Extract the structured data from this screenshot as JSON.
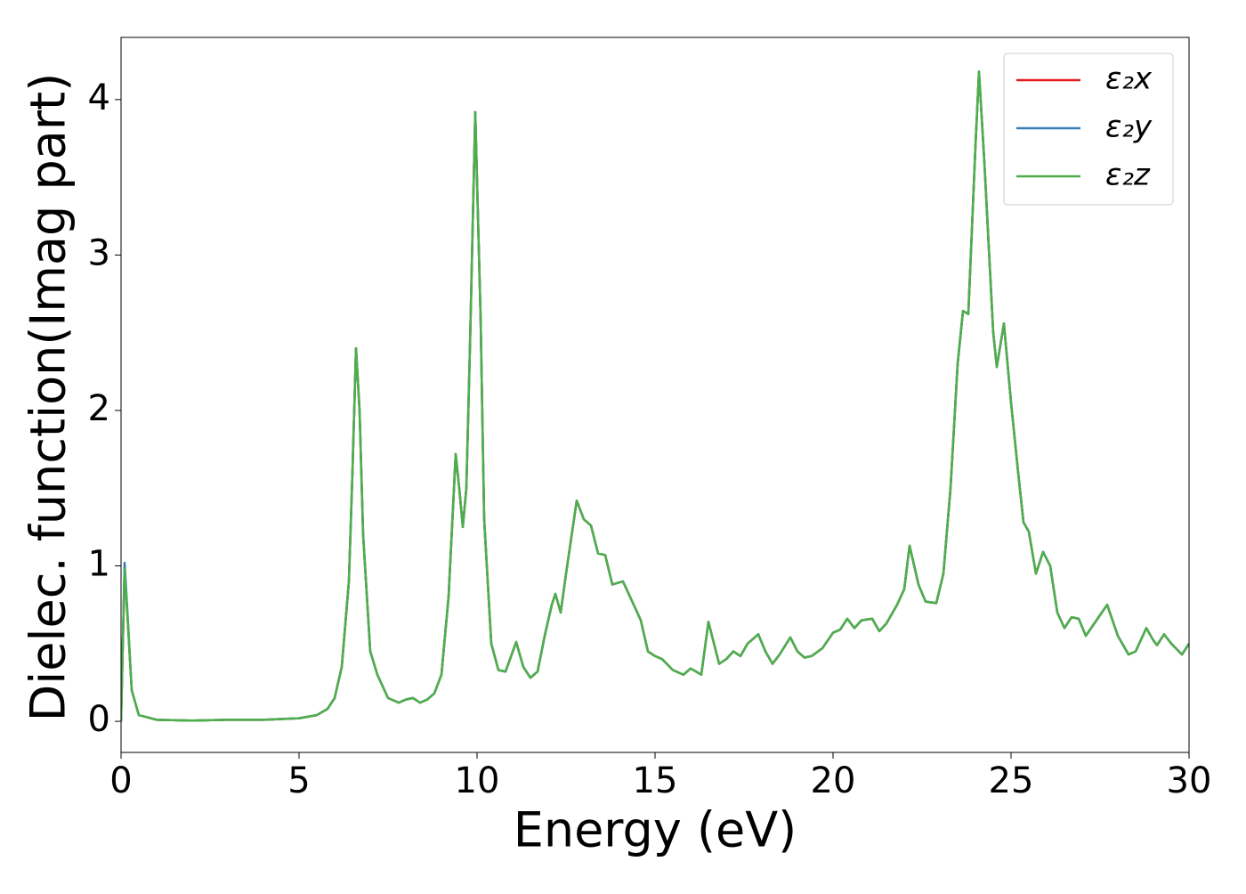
{
  "chart_data": {
    "type": "line",
    "xlabel": "Energy (eV)",
    "ylabel": "Dielec. function(Imag part)",
    "xlim": [
      0,
      30
    ],
    "xticks": [
      0,
      5,
      10,
      15,
      20,
      25,
      30
    ],
    "ylim": [
      -0.2,
      4.4
    ],
    "yticks": [
      0,
      1,
      2,
      3,
      4
    ],
    "legend": "upper right",
    "x": [
      0,
      0.1,
      0.2,
      0.3,
      0.5,
      1,
      2,
      3,
      4,
      5,
      5.5,
      5.8,
      6.0,
      6.2,
      6.4,
      6.5,
      6.6,
      6.7,
      6.8,
      7.0,
      7.2,
      7.5,
      7.8,
      8.0,
      8.2,
      8.4,
      8.6,
      8.8,
      9.0,
      9.2,
      9.4,
      9.5,
      9.6,
      9.7,
      9.8,
      9.95,
      10.1,
      10.2,
      10.4,
      10.6,
      10.8,
      11.1,
      11.3,
      11.5,
      11.7,
      11.9,
      12.1,
      12.2,
      12.35,
      12.5,
      12.8,
      13.0,
      13.2,
      13.4,
      13.6,
      13.8,
      14.1,
      14.4,
      14.6,
      14.8,
      15.0,
      15.2,
      15.5,
      15.8,
      16.0,
      16.3,
      16.5,
      16.8,
      17.0,
      17.2,
      17.4,
      17.6,
      17.9,
      18.1,
      18.3,
      18.5,
      18.8,
      19.0,
      19.2,
      19.4,
      19.7,
      20.0,
      20.2,
      20.4,
      20.6,
      20.8,
      21.1,
      21.3,
      21.5,
      21.8,
      22.0,
      22.15,
      22.4,
      22.6,
      22.9,
      23.1,
      23.3,
      23.5,
      23.65,
      23.8,
      24.0,
      24.1,
      24.25,
      24.5,
      24.6,
      24.8,
      25.0,
      25.2,
      25.35,
      25.5,
      25.7,
      25.9,
      26.1,
      26.3,
      26.5,
      26.7,
      26.9,
      27.1,
      27.4,
      27.7,
      28.0,
      28.3,
      28.5,
      28.8,
      29.0,
      29.1,
      29.3,
      29.5,
      29.8,
      30
    ],
    "series": [
      {
        "name": "ε₂x",
        "color": "#e41a1c",
        "values": [
          0,
          0.98,
          0.6,
          0.2,
          0.04,
          0.01,
          0.005,
          0.01,
          0.01,
          0.02,
          0.04,
          0.08,
          0.15,
          0.35,
          0.9,
          1.6,
          2.4,
          2.0,
          1.2,
          0.45,
          0.3,
          0.15,
          0.12,
          0.14,
          0.15,
          0.12,
          0.14,
          0.18,
          0.3,
          0.8,
          1.72,
          1.5,
          1.25,
          1.5,
          2.4,
          3.92,
          2.6,
          1.3,
          0.5,
          0.33,
          0.32,
          0.51,
          0.35,
          0.28,
          0.32,
          0.55,
          0.75,
          0.82,
          0.7,
          0.95,
          1.42,
          1.3,
          1.26,
          1.08,
          1.07,
          0.88,
          0.9,
          0.75,
          0.65,
          0.45,
          0.42,
          0.4,
          0.33,
          0.3,
          0.34,
          0.3,
          0.64,
          0.37,
          0.4,
          0.45,
          0.42,
          0.5,
          0.56,
          0.45,
          0.37,
          0.43,
          0.54,
          0.45,
          0.41,
          0.42,
          0.47,
          0.57,
          0.59,
          0.66,
          0.6,
          0.65,
          0.66,
          0.58,
          0.63,
          0.75,
          0.85,
          1.13,
          0.88,
          0.77,
          0.76,
          0.95,
          1.5,
          2.3,
          2.64,
          2.62,
          3.7,
          4.18,
          3.6,
          2.5,
          2.28,
          2.56,
          2.05,
          1.6,
          1.28,
          1.22,
          0.95,
          1.09,
          1.0,
          0.7,
          0.6,
          0.67,
          0.66,
          0.55,
          0.65,
          0.75,
          0.55,
          0.43,
          0.45,
          0.6,
          0.52,
          0.49,
          0.56,
          0.5,
          0.43,
          0.5
        ]
      },
      {
        "name": "ε₂y",
        "color": "#377eb8",
        "values": [
          0,
          1.02,
          0.62,
          0.2,
          0.04,
          0.01,
          0.005,
          0.01,
          0.01,
          0.02,
          0.04,
          0.08,
          0.15,
          0.35,
          0.9,
          1.6,
          2.4,
          2.0,
          1.2,
          0.45,
          0.3,
          0.15,
          0.12,
          0.14,
          0.15,
          0.12,
          0.14,
          0.18,
          0.3,
          0.8,
          1.72,
          1.5,
          1.25,
          1.5,
          2.4,
          3.92,
          2.6,
          1.3,
          0.5,
          0.33,
          0.32,
          0.51,
          0.35,
          0.28,
          0.32,
          0.55,
          0.75,
          0.82,
          0.7,
          0.95,
          1.42,
          1.3,
          1.26,
          1.08,
          1.07,
          0.88,
          0.9,
          0.75,
          0.65,
          0.45,
          0.42,
          0.4,
          0.33,
          0.3,
          0.34,
          0.3,
          0.64,
          0.37,
          0.4,
          0.45,
          0.42,
          0.5,
          0.56,
          0.45,
          0.37,
          0.43,
          0.54,
          0.45,
          0.41,
          0.42,
          0.47,
          0.57,
          0.59,
          0.66,
          0.6,
          0.65,
          0.66,
          0.58,
          0.63,
          0.75,
          0.85,
          1.13,
          0.88,
          0.77,
          0.76,
          0.95,
          1.5,
          2.3,
          2.64,
          2.62,
          3.7,
          4.18,
          3.6,
          2.5,
          2.28,
          2.56,
          2.05,
          1.6,
          1.28,
          1.22,
          0.95,
          1.09,
          1.0,
          0.7,
          0.6,
          0.67,
          0.66,
          0.55,
          0.65,
          0.75,
          0.55,
          0.43,
          0.45,
          0.6,
          0.52,
          0.49,
          0.56,
          0.5,
          0.43,
          0.5
        ]
      },
      {
        "name": "ε₂z",
        "color": "#4daf4a",
        "values": [
          0,
          0.98,
          0.6,
          0.2,
          0.04,
          0.01,
          0.005,
          0.01,
          0.01,
          0.02,
          0.04,
          0.08,
          0.15,
          0.35,
          0.9,
          1.6,
          2.4,
          2.0,
          1.2,
          0.45,
          0.3,
          0.15,
          0.12,
          0.14,
          0.15,
          0.12,
          0.14,
          0.18,
          0.3,
          0.8,
          1.72,
          1.5,
          1.25,
          1.5,
          2.4,
          3.92,
          2.6,
          1.3,
          0.5,
          0.33,
          0.32,
          0.51,
          0.35,
          0.28,
          0.32,
          0.55,
          0.75,
          0.82,
          0.7,
          0.95,
          1.42,
          1.3,
          1.26,
          1.08,
          1.07,
          0.88,
          0.9,
          0.75,
          0.65,
          0.45,
          0.42,
          0.4,
          0.33,
          0.3,
          0.34,
          0.3,
          0.64,
          0.37,
          0.4,
          0.45,
          0.42,
          0.5,
          0.56,
          0.45,
          0.37,
          0.43,
          0.54,
          0.45,
          0.41,
          0.42,
          0.47,
          0.57,
          0.59,
          0.66,
          0.6,
          0.65,
          0.66,
          0.58,
          0.63,
          0.75,
          0.85,
          1.13,
          0.88,
          0.77,
          0.76,
          0.95,
          1.5,
          2.3,
          2.64,
          2.62,
          3.7,
          4.18,
          3.6,
          2.5,
          2.28,
          2.56,
          2.05,
          1.6,
          1.28,
          1.22,
          0.95,
          1.09,
          1.0,
          0.7,
          0.6,
          0.67,
          0.66,
          0.55,
          0.65,
          0.75,
          0.55,
          0.43,
          0.45,
          0.6,
          0.52,
          0.49,
          0.56,
          0.5,
          0.43,
          0.5
        ]
      }
    ]
  }
}
